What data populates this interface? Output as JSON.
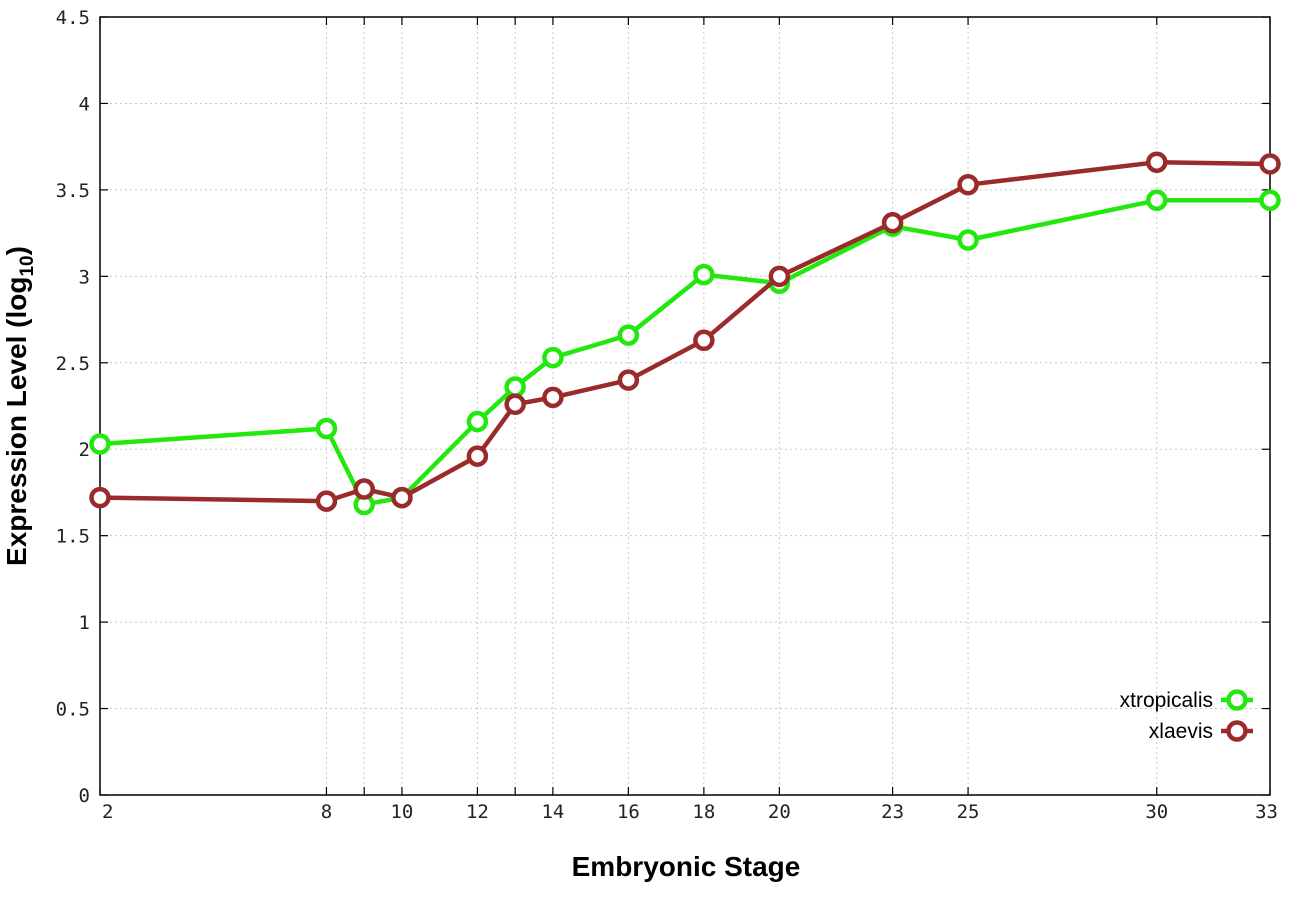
{
  "chart_data": {
    "type": "line",
    "xlabel": "Embryonic Stage",
    "ylabel_main": "Expression Level (log",
    "ylabel_sub": "10",
    "ylabel_close": ")",
    "x_ticks": [
      2,
      8,
      9,
      10,
      12,
      13,
      14,
      16,
      18,
      20,
      23,
      25,
      30,
      33
    ],
    "x_tick_labels": [
      "2",
      "8",
      "",
      "10",
      "12",
      "",
      "14",
      "16",
      "18",
      "20",
      "23",
      "25",
      "30",
      "33"
    ],
    "y_ticks": [
      0,
      0.5,
      1,
      1.5,
      2,
      2.5,
      3,
      3.5,
      4,
      4.5
    ],
    "y_tick_labels": [
      "0",
      "0.5",
      "1",
      "1.5",
      "2",
      "2.5",
      "3",
      "3.5",
      "4",
      "4.5"
    ],
    "ylim": [
      0,
      4.5
    ],
    "grid": true,
    "legend_position": "bottom-right",
    "series": [
      {
        "name": "xtropicalis",
        "color": "#22e80e",
        "x": [
          2,
          8,
          9,
          10,
          12,
          13,
          14,
          16,
          18,
          20,
          23,
          25,
          30,
          33
        ],
        "values": [
          2.03,
          2.12,
          1.68,
          1.72,
          2.16,
          2.36,
          2.53,
          2.66,
          3.01,
          2.96,
          3.29,
          3.21,
          3.44,
          3.44
        ]
      },
      {
        "name": "xlaevis",
        "color": "#9b2a2a",
        "x": [
          2,
          8,
          9,
          10,
          12,
          13,
          14,
          16,
          18,
          20,
          23,
          25,
          30,
          33
        ],
        "values": [
          1.72,
          1.7,
          1.77,
          1.72,
          1.96,
          2.26,
          2.3,
          2.4,
          2.63,
          3.0,
          3.31,
          3.53,
          3.66,
          3.65
        ]
      }
    ]
  }
}
